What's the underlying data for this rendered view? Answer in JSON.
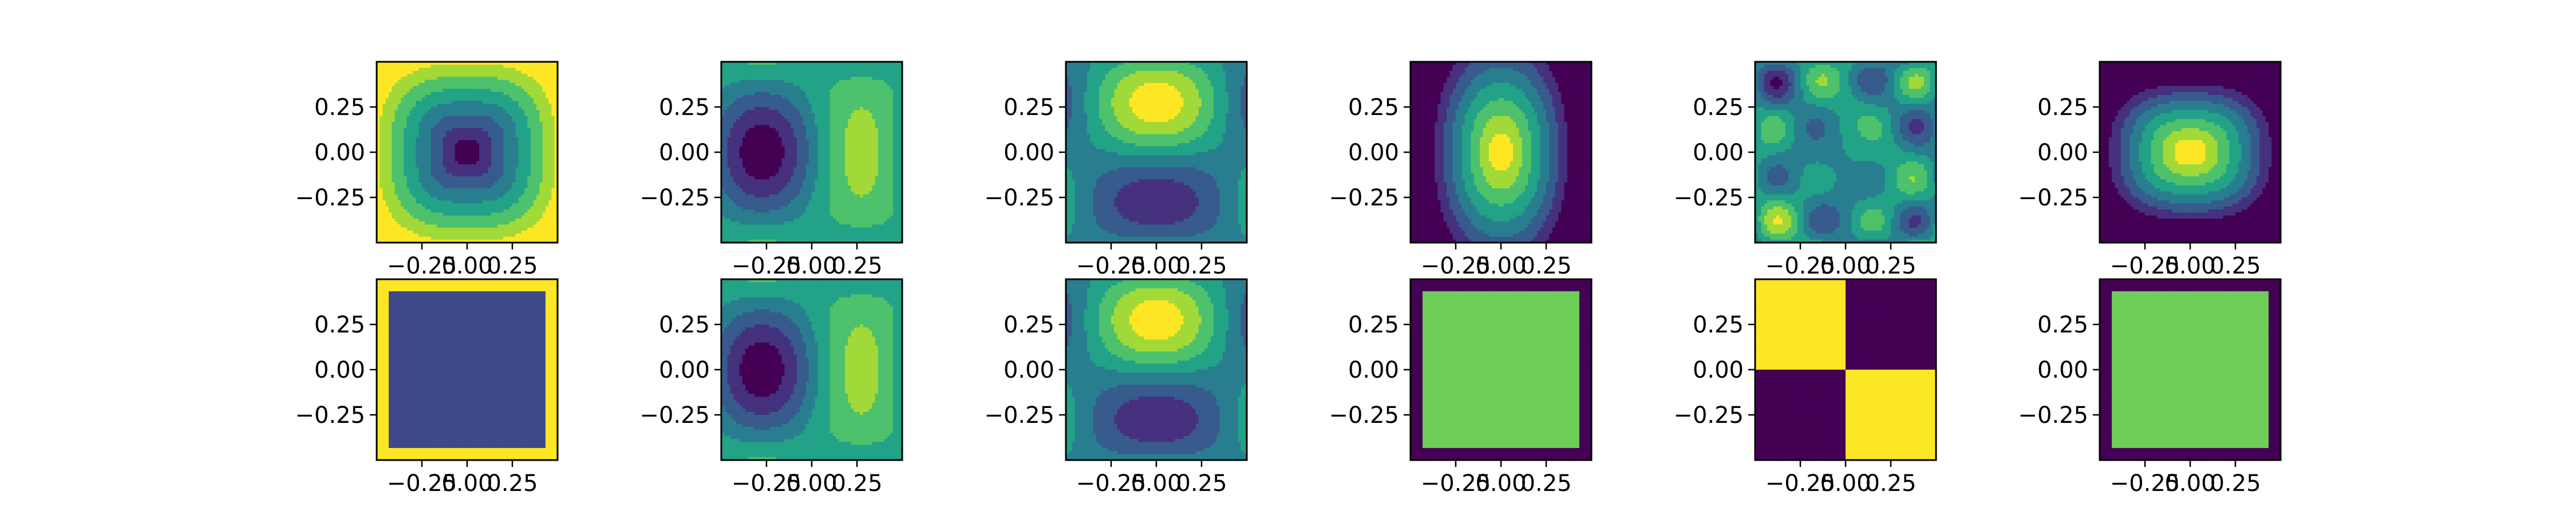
{
  "figure": {
    "rows": 2,
    "cols": 6,
    "colormap": "viridis",
    "colormap_stops": [
      "#440154",
      "#482878",
      "#3e4989",
      "#31688e",
      "#26828e",
      "#1f9e89",
      "#35b779",
      "#6ece58",
      "#b5de2b",
      "#fde725"
    ]
  },
  "chart_data": {
    "type": "heatmap",
    "plot_style": "filled-contour",
    "xlim": [
      -0.5,
      0.5
    ],
    "ylim": [
      -0.5,
      0.5
    ],
    "x_ticks": [
      -0.25,
      0.0,
      0.25
    ],
    "x_tick_labels": [
      "−0.25",
      "0.00",
      "0.25"
    ],
    "y_ticks": [
      0.25,
      0.0,
      -0.25
    ],
    "y_tick_labels": [
      "0.25",
      "0.00",
      "−0.25"
    ],
    "panels": [
      {
        "row": 0,
        "col": 0,
        "pattern": "bowl-min-center",
        "levels": 8
      },
      {
        "row": 0,
        "col": 1,
        "pattern": "left-min-right-max",
        "levels": 8
      },
      {
        "row": 0,
        "col": 2,
        "pattern": "top-max-bottom-min",
        "levels": 8
      },
      {
        "row": 0,
        "col": 3,
        "pattern": "hourglass-max-center",
        "levels": 8
      },
      {
        "row": 0,
        "col": 4,
        "pattern": "diagonal-corner-extremes",
        "levels": 8
      },
      {
        "row": 0,
        "col": 5,
        "pattern": "dome-max-center",
        "levels": 8
      },
      {
        "row": 1,
        "col": 0,
        "pattern": "binary-square-inner",
        "levels": 2
      },
      {
        "row": 1,
        "col": 1,
        "pattern": "left-min-right-max",
        "levels": 8
      },
      {
        "row": 1,
        "col": 2,
        "pattern": "top-max-bottom-min",
        "levels": 8
      },
      {
        "row": 1,
        "col": 3,
        "pattern": "binary-square-inner",
        "levels": 2
      },
      {
        "row": 1,
        "col": 4,
        "pattern": "binary-quadrants",
        "levels": 2
      },
      {
        "row": 1,
        "col": 5,
        "pattern": "binary-square-inner",
        "levels": 2
      }
    ]
  }
}
